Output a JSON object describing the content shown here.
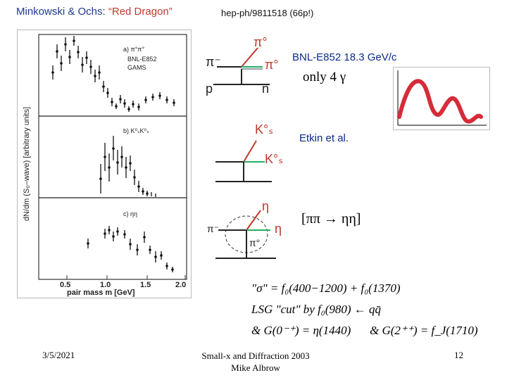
{
  "header": {
    "title_authors": "Minkowski & Ochs: ",
    "title_quote": "“Red Dragon”",
    "ref": "hep-ph/9811518 (66p!)"
  },
  "plot": {
    "ylabel": "dN/dm (S₀–wave) [arbitrary units]",
    "xlabel": "pair mass  m  [GeV]",
    "ticks": [
      "0.5",
      "1.0",
      "1.5",
      "2.0"
    ],
    "panel_a": "a)  π°π°",
    "legend_1": "BNL-E852",
    "legend_2": "GAMS",
    "panel_b": "b)  K⁰ₛK⁰ₛ",
    "panel_c": "c)  ηη"
  },
  "labels": {
    "bnl": "BNL-E852 18.3 GeV/c",
    "only4": "only 4 γ",
    "etkin": "Etkin et al.",
    "reaction": "[ππ → ηη]"
  },
  "diagrams": {
    "d1_pi_minus": "π⁻",
    "d1_pi0_top": "π°",
    "d1_pi0_right": "π°",
    "d1_p": "p",
    "d1_n": "n",
    "d2_ks_top": "K°ₛ",
    "d2_ks_bottom": "K°ₛ",
    "d3_eta_top": "η",
    "d3_eta_right": "η",
    "d3_pi_minus": "π⁻",
    "d3_pi_prime": "π°"
  },
  "equations": {
    "line1": "\"σ\" = f₀(400−1200) + f₀(1370)",
    "line2": "LSG \"cut\" by f₀(980) ← qq̄",
    "line3a": "& G(0⁻⁺) = η(1440)",
    "line3b": "&   G(2⁺⁺) = f_J(1710)"
  },
  "footer": {
    "date": "3/5/2021",
    "center_line1": "Small-x and Diffraction 2003",
    "center_line2": "Mike Albrow",
    "page": "12"
  }
}
